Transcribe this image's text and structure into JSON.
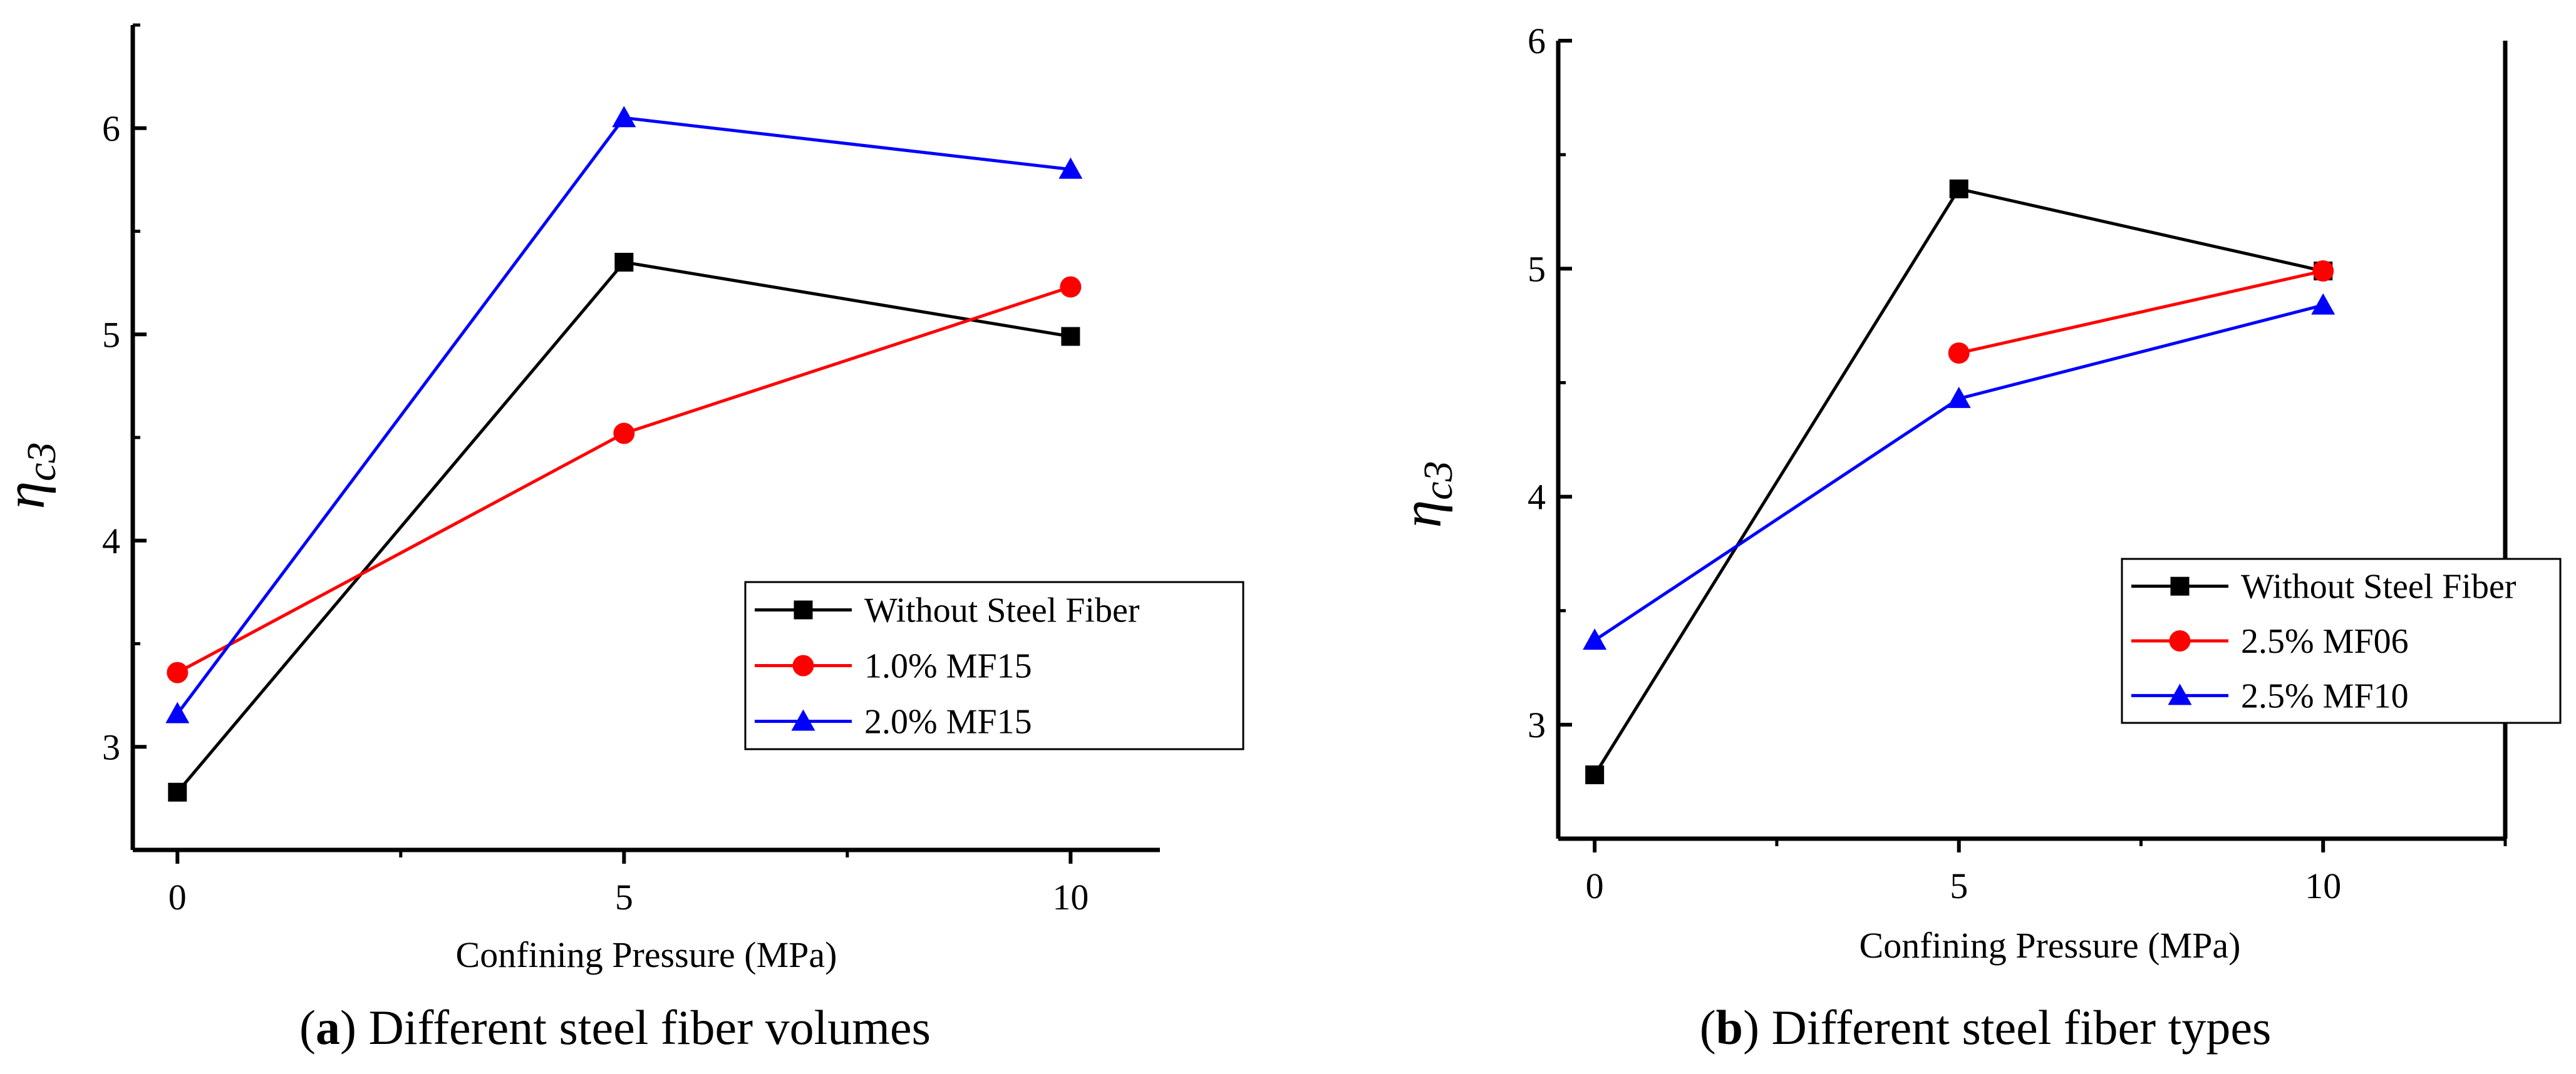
{
  "chart_data": [
    {
      "type": "line",
      "panel_label": "a",
      "caption": "Different steel fiber volumes",
      "xlabel": "Confining Pressure (MPa)",
      "ylabel_symbol": "η",
      "ylabel_subscript": "c3",
      "x": [
        0,
        5,
        10
      ],
      "xlim": [
        -0.5,
        11
      ],
      "ylim": [
        2.5,
        6.5
      ],
      "xticks": [
        0,
        5,
        10
      ],
      "yticks": [
        3,
        4,
        5,
        6
      ],
      "legend_position": "center-right",
      "grid": false,
      "series": [
        {
          "name": "Without Steel Fiber",
          "marker": "square",
          "color": "#000000",
          "values": [
            2.78,
            5.35,
            4.99
          ]
        },
        {
          "name": "1.0% MF15",
          "marker": "circle",
          "color": "#ff0000",
          "values": [
            3.36,
            4.52,
            5.23
          ]
        },
        {
          "name": "2.0% MF15",
          "marker": "triangle",
          "color": "#0000ff",
          "values": [
            3.16,
            6.05,
            5.8
          ]
        }
      ]
    },
    {
      "type": "line",
      "panel_label": "b",
      "caption": "Different steel fiber types",
      "xlabel": "Confining Pressure (MPa)",
      "ylabel_symbol": "η",
      "ylabel_subscript": "c3",
      "x": [
        0,
        5,
        10
      ],
      "xlim": [
        -0.5,
        12.5
      ],
      "ylim": [
        2.5,
        6
      ],
      "xticks": [
        0,
        5,
        10
      ],
      "yticks": [
        3,
        4,
        5,
        6
      ],
      "legend_position": "center-right",
      "grid": false,
      "series": [
        {
          "name": "Without Steel Fiber",
          "marker": "square",
          "color": "#000000",
          "values": [
            2.78,
            5.35,
            4.99
          ]
        },
        {
          "name": "2.5% MF06",
          "marker": "circle",
          "color": "#ff0000",
          "values": [
            null,
            4.63,
            4.99
          ]
        },
        {
          "name": "2.5% MF10",
          "marker": "triangle",
          "color": "#0000ff",
          "values": [
            3.37,
            4.43,
            4.84
          ]
        }
      ]
    }
  ]
}
